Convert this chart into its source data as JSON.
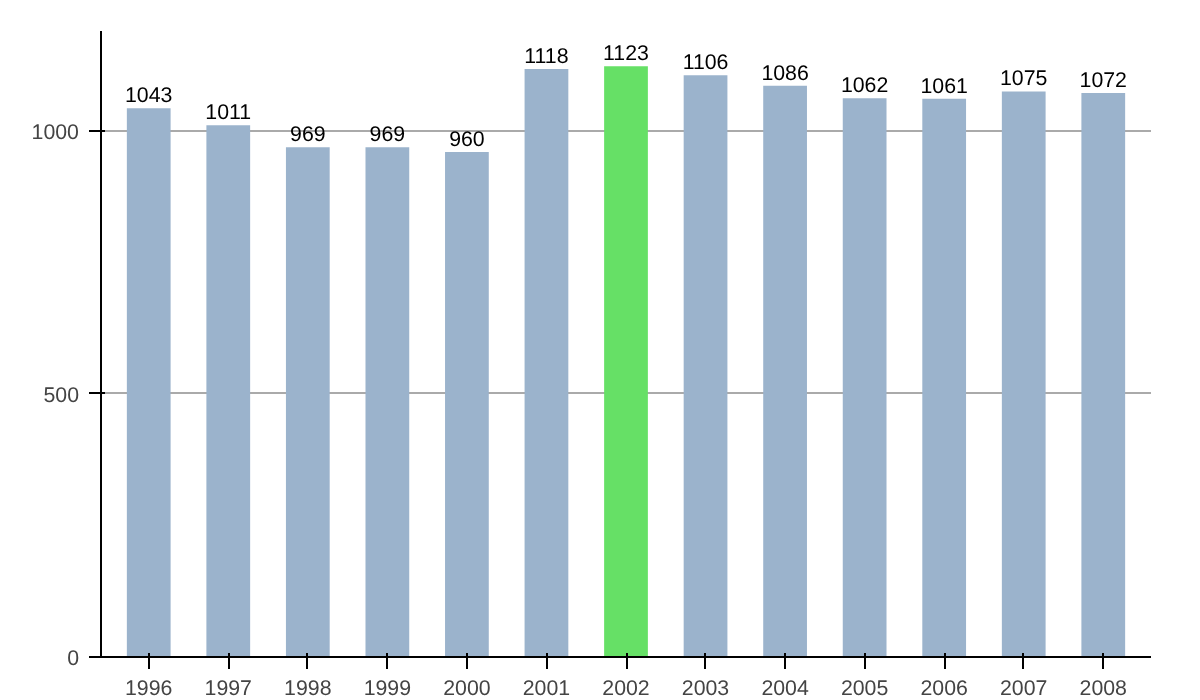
{
  "chart_data": {
    "type": "bar",
    "categories": [
      "1996",
      "1997",
      "1998",
      "1999",
      "2000",
      "2001",
      "2002",
      "2003",
      "2004",
      "2005",
      "2006",
      "2007",
      "2008"
    ],
    "values": [
      1043,
      1011,
      969,
      969,
      960,
      1118,
      1123,
      1106,
      1086,
      1062,
      1061,
      1075,
      1072
    ],
    "colors": [
      "#9bb3cc",
      "#9bb3cc",
      "#9bb3cc",
      "#9bb3cc",
      "#9bb3cc",
      "#9bb3cc",
      "#66e066",
      "#9bb3cc",
      "#9bb3cc",
      "#9bb3cc",
      "#9bb3cc",
      "#9bb3cc",
      "#9bb3cc"
    ],
    "ylim": [
      0,
      1190
    ],
    "yticks": [
      0,
      500,
      1000
    ],
    "grid": "y",
    "data_labels": true
  }
}
